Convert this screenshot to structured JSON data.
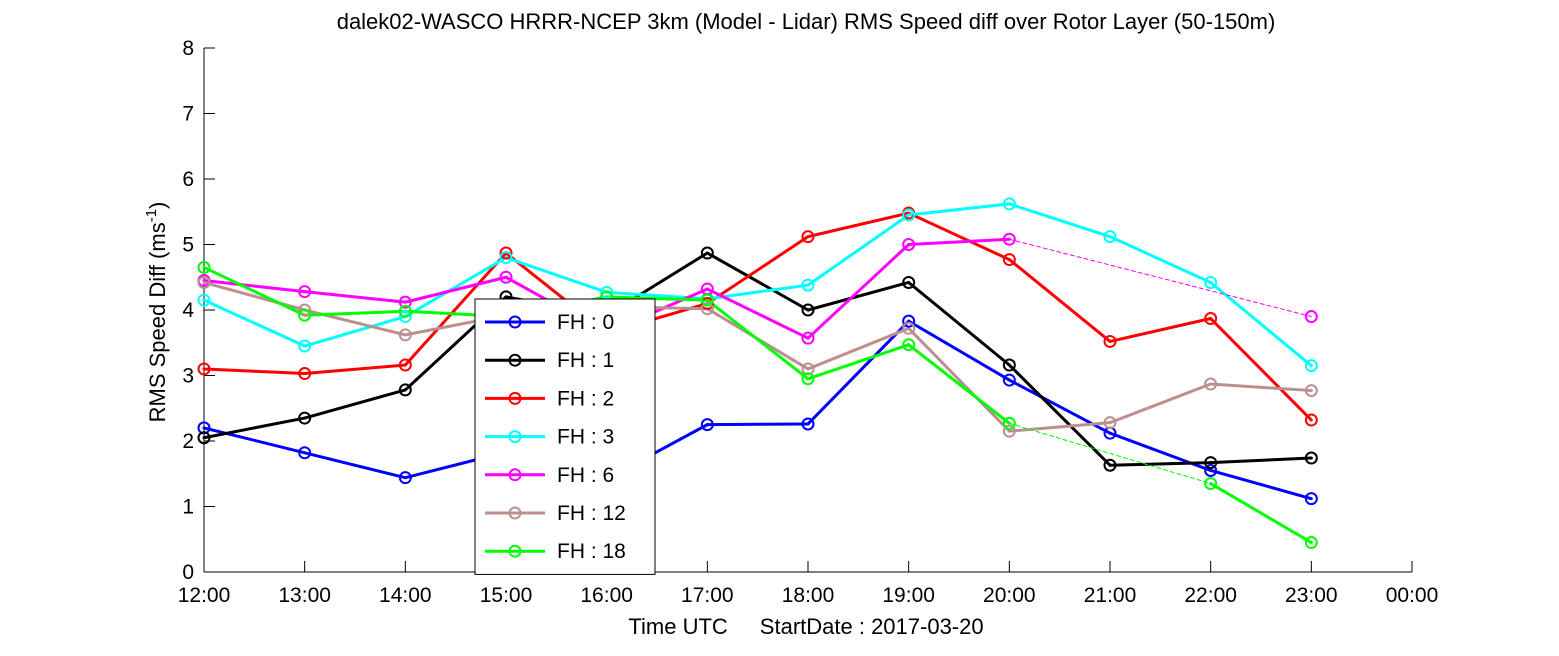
{
  "chart_data": {
    "type": "line",
    "title": "dalek02-WASCO HRRR-NCEP 3km (Model - Lidar) RMS Speed diff over Rotor Layer (50-150m)",
    "xlabel_prefix": "Time UTC",
    "xlabel_start_label": "StartDate : 2017-03-20",
    "ylabel": "RMS Speed Diff (ms",
    "ylabel_sup": "-1",
    "ylabel_close": ")",
    "x": [
      "12:00",
      "13:00",
      "14:00",
      "15:00",
      "16:00",
      "17:00",
      "18:00",
      "19:00",
      "20:00",
      "21:00",
      "22:00",
      "23:00",
      "00:00"
    ],
    "xlim": [
      0,
      12
    ],
    "ylim": [
      0,
      8
    ],
    "yticks": [
      "0",
      "1",
      "2",
      "3",
      "4",
      "5",
      "6",
      "7",
      "8"
    ],
    "grid": false,
    "legend_position": "center-left",
    "series": [
      {
        "name": "FH : 0",
        "color": "#0000ff",
        "values": [
          2.2,
          1.82,
          1.44,
          1.83,
          1.42,
          2.25,
          2.26,
          3.83,
          2.93,
          2.12,
          1.55,
          1.12,
          null
        ]
      },
      {
        "name": "FH : 1",
        "color": "#000000",
        "values": [
          2.05,
          2.35,
          2.78,
          4.2,
          3.92,
          4.87,
          4.0,
          4.42,
          3.16,
          1.63,
          1.67,
          1.74,
          null
        ]
      },
      {
        "name": "FH : 2",
        "color": "#ff0000",
        "values": [
          3.1,
          3.03,
          3.16,
          4.87,
          3.65,
          4.1,
          5.12,
          5.48,
          4.77,
          3.52,
          3.87,
          2.32,
          null
        ]
      },
      {
        "name": "FH : 3",
        "color": "#00ffff",
        "values": [
          4.15,
          3.45,
          3.9,
          4.8,
          4.27,
          4.17,
          4.38,
          5.45,
          5.62,
          5.12,
          4.42,
          3.15,
          null
        ]
      },
      {
        "name": "FH : 6",
        "color": "#ff00ff",
        "values": [
          4.45,
          4.28,
          4.12,
          4.5,
          3.65,
          4.32,
          3.57,
          5.0,
          5.08,
          null,
          null,
          3.9,
          null
        ]
      },
      {
        "name": "FH : 12",
        "color": "#bc8f8f",
        "values": [
          4.42,
          4.0,
          3.62,
          3.92,
          4.05,
          4.02,
          3.1,
          3.72,
          2.15,
          2.28,
          2.87,
          2.77,
          null
        ]
      },
      {
        "name": "FH : 18",
        "color": "#00ff00",
        "values": [
          4.65,
          3.92,
          3.98,
          3.9,
          4.2,
          4.15,
          2.95,
          3.47,
          2.27,
          null,
          1.35,
          0.45,
          null
        ]
      }
    ]
  }
}
